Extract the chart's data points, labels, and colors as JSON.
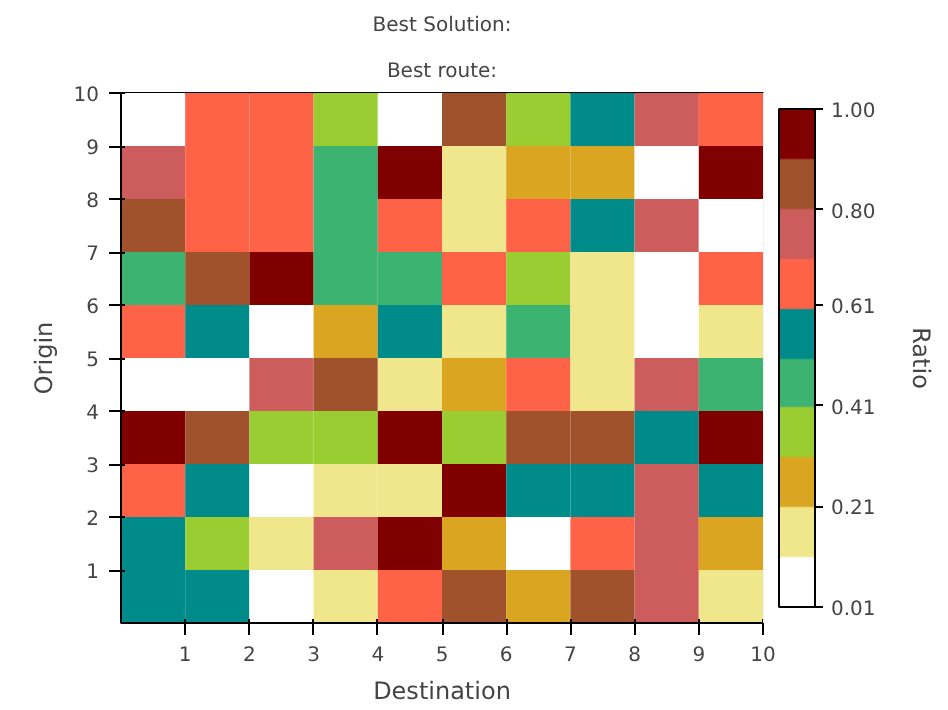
{
  "chart_data": {
    "type": "heatmap",
    "title": "Best Solution:",
    "subtitle": "Best route:",
    "xlabel": "Destination",
    "ylabel": "Origin",
    "clabel": "Ratio",
    "xlim": [
      0,
      10
    ],
    "xticks": [
      1,
      2,
      3,
      4,
      5,
      6,
      7,
      8,
      9,
      10
    ],
    "ylim": [
      0,
      10
    ],
    "yticks": [
      1,
      2,
      3,
      4,
      5,
      6,
      7,
      8,
      9,
      10
    ],
    "clim": [
      0.01,
      1.0
    ],
    "cticks": [
      {
        "value": 0.01,
        "label": "0.01"
      },
      {
        "value": 0.21,
        "label": "0.21"
      },
      {
        "value": 0.41,
        "label": "0.41"
      },
      {
        "value": 0.61,
        "label": "0.61"
      },
      {
        "value": 0.8,
        "label": "0.80"
      },
      {
        "value": 1.0,
        "label": "1.00"
      }
    ],
    "colors": [
      "#ffffff",
      "#f0e68c",
      "#daa520",
      "#9acd32",
      "#3cb371",
      "#008b8b",
      "#ff6347",
      "#cd5c5c",
      "#a0522d",
      "#800000"
    ],
    "grid": false,
    "cells": [
      [
        0.06,
        0.65,
        0.65,
        0.36,
        0.06,
        0.85,
        0.36,
        0.56,
        0.75,
        0.65
      ],
      [
        0.75,
        0.65,
        0.65,
        0.46,
        0.95,
        0.16,
        0.26,
        0.26,
        0.06,
        0.95
      ],
      [
        0.85,
        0.65,
        0.65,
        0.46,
        0.65,
        0.16,
        0.65,
        0.56,
        0.75,
        0.06
      ],
      [
        0.46,
        0.85,
        0.95,
        0.46,
        0.46,
        0.65,
        0.36,
        0.16,
        0.06,
        0.65
      ],
      [
        0.65,
        0.56,
        0.06,
        0.26,
        0.56,
        0.16,
        0.46,
        0.16,
        0.06,
        0.16
      ],
      [
        0.06,
        0.06,
        0.75,
        0.85,
        0.16,
        0.26,
        0.65,
        0.16,
        0.75,
        0.46
      ],
      [
        0.95,
        0.85,
        0.36,
        0.36,
        0.95,
        0.36,
        0.85,
        0.85,
        0.56,
        0.95
      ],
      [
        0.65,
        0.56,
        0.06,
        0.16,
        0.16,
        0.95,
        0.56,
        0.56,
        0.75,
        0.56
      ],
      [
        0.56,
        0.36,
        0.16,
        0.75,
        0.95,
        0.26,
        0.06,
        0.65,
        0.75,
        0.26
      ],
      [
        0.56,
        0.56,
        0.06,
        0.16,
        0.65,
        0.85,
        0.26,
        0.85,
        0.75,
        0.16
      ]
    ]
  }
}
